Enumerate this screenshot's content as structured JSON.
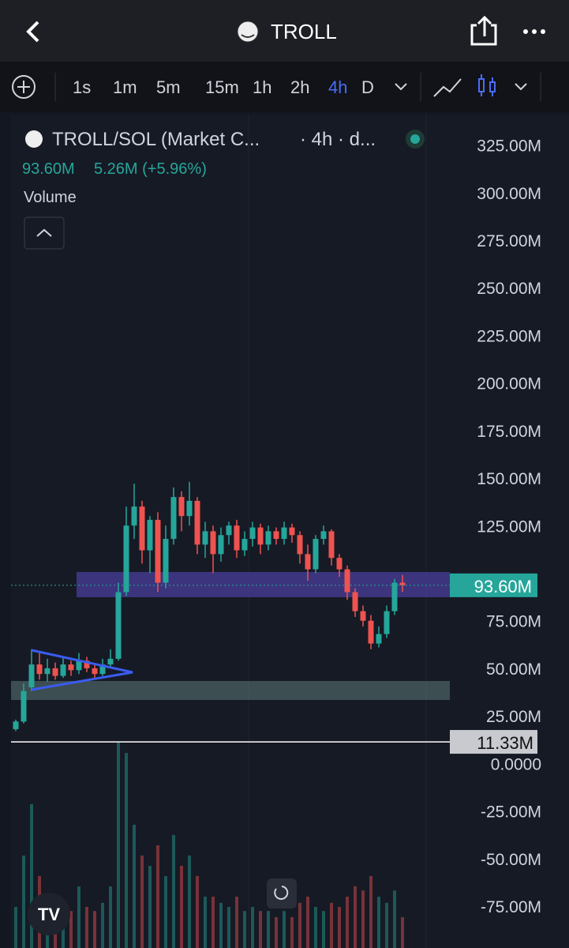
{
  "header": {
    "title": "TROLL"
  },
  "toolbar": {
    "intervals": [
      "1s",
      "1m",
      "5m",
      "15m",
      "1h",
      "2h",
      "4h",
      "D"
    ],
    "selected": "4h"
  },
  "legend": {
    "symbol": "TROLL/SOL (Market C...",
    "interval": "· 4h · d...",
    "price": "93.60M",
    "change": "5.26M (+5.96%)",
    "volume_label": "Volume"
  },
  "chart_data": {
    "type": "candlestick",
    "open": [
      18,
      22,
      40,
      52,
      47,
      50,
      46,
      52,
      49,
      54,
      50,
      47,
      52,
      55,
      90,
      125,
      135,
      112,
      128,
      95,
      118,
      140,
      130,
      138,
      115,
      122,
      110,
      120,
      125,
      112,
      118,
      124,
      115,
      122,
      118,
      124,
      120,
      110,
      102,
      118,
      122,
      108,
      102,
      90,
      80,
      75,
      63,
      68,
      80,
      95
    ],
    "high": [
      23,
      42,
      60,
      58,
      55,
      53,
      56,
      54,
      58,
      56,
      52,
      55,
      60,
      95,
      135,
      147,
      138,
      130,
      132,
      125,
      145,
      143,
      148,
      140,
      127,
      125,
      124,
      127,
      128,
      122,
      127,
      126,
      125,
      124,
      127,
      126,
      122,
      115,
      120,
      125,
      123,
      110,
      104,
      92,
      83,
      78,
      72,
      83,
      97,
      99
    ],
    "low": [
      17,
      21,
      38,
      44,
      43,
      44,
      45,
      46,
      47,
      48,
      45,
      46,
      50,
      54,
      88,
      118,
      105,
      100,
      90,
      92,
      115,
      122,
      125,
      110,
      108,
      100,
      106,
      115,
      108,
      109,
      114,
      110,
      112,
      115,
      115,
      116,
      105,
      96,
      100,
      115,
      104,
      98,
      86,
      77,
      72,
      60,
      61,
      66,
      78,
      90
    ],
    "close": [
      22,
      38,
      52,
      47,
      50,
      46,
      52,
      49,
      54,
      50,
      47,
      52,
      55,
      90,
      125,
      135,
      112,
      128,
      95,
      118,
      140,
      130,
      138,
      115,
      122,
      110,
      120,
      125,
      112,
      118,
      124,
      115,
      122,
      118,
      124,
      120,
      110,
      102,
      118,
      122,
      108,
      102,
      90,
      80,
      75,
      63,
      68,
      80,
      95,
      93.6
    ],
    "volume": [
      20,
      45,
      70,
      35,
      25,
      20,
      22,
      18,
      30,
      20,
      18,
      22,
      30,
      100,
      95,
      60,
      45,
      40,
      50,
      35,
      55,
      40,
      45,
      35,
      25,
      25,
      22,
      20,
      25,
      18,
      20,
      18,
      18,
      15,
      18,
      15,
      22,
      25,
      20,
      18,
      22,
      20,
      25,
      30,
      28,
      35,
      25,
      22,
      28,
      15
    ],
    "ylim": [
      -97,
      341
    ],
    "yticks": [
      {
        "value": 325,
        "label": "325.00M"
      },
      {
        "value": 300,
        "label": "300.00M"
      },
      {
        "value": 275,
        "label": "275.00M"
      },
      {
        "value": 250,
        "label": "250.00M"
      },
      {
        "value": 225,
        "label": "225.00M"
      },
      {
        "value": 200,
        "label": "200.00M"
      },
      {
        "value": 175,
        "label": "175.00M"
      },
      {
        "value": 150,
        "label": "150.00M"
      },
      {
        "value": 125,
        "label": "125.00M"
      },
      {
        "value": 75,
        "label": "75.00M"
      },
      {
        "value": 50,
        "label": "50.00M"
      },
      {
        "value": 25,
        "label": "25.00M"
      },
      {
        "value": 0,
        "label": "0.0000"
      },
      {
        "value": -25,
        "label": "-25.00M"
      },
      {
        "value": -50,
        "label": "-50.00M"
      },
      {
        "value": -75,
        "label": "-75.00M"
      }
    ],
    "last_price": {
      "value": 93.6,
      "label": "93.60M"
    },
    "line_price": {
      "value": 11.33,
      "label": "11.33M"
    },
    "up_color": "#26a69a",
    "down_color": "#ef5350"
  }
}
